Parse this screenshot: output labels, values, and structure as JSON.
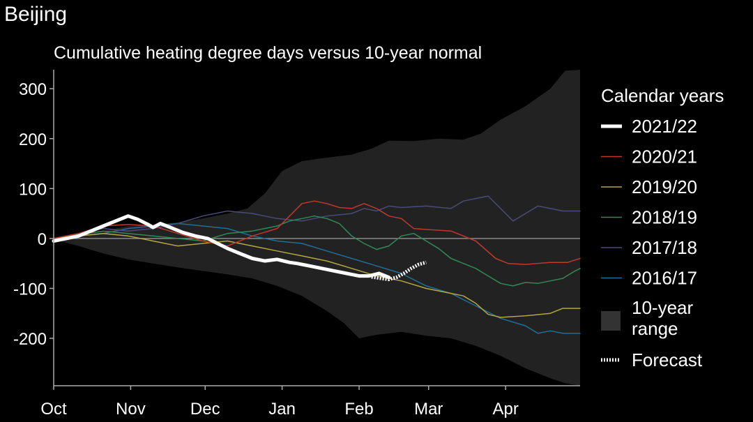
{
  "page_title": "Beijing",
  "chart_data": {
    "type": "line",
    "title": "Cumulative heating degree days versus 10-year normal",
    "xlabel": "",
    "ylabel": "",
    "x_tick_labels": [
      "Oct",
      "Nov",
      "Dec",
      "Jan",
      "Feb",
      "Mar",
      "Apr"
    ],
    "x_tick_days": [
      0,
      31,
      61,
      92,
      123,
      151,
      182
    ],
    "xlim": [
      0,
      212
    ],
    "ylim": [
      -295,
      338
    ],
    "y_ticks": [
      300,
      200,
      100,
      0,
      -100,
      -200
    ],
    "legend": {
      "title": "Calendar years",
      "position": "right",
      "range_label_line1": "10-year",
      "range_label_line2": "range",
      "forecast_label": "Forecast"
    },
    "range_band": {
      "name": "10-year range",
      "color": "#222222",
      "upper": [
        [
          0,
          2
        ],
        [
          10,
          8
        ],
        [
          20,
          15
        ],
        [
          30,
          25
        ],
        [
          40,
          28
        ],
        [
          50,
          32
        ],
        [
          60,
          40
        ],
        [
          70,
          50
        ],
        [
          78,
          60
        ],
        [
          85,
          90
        ],
        [
          92,
          135
        ],
        [
          100,
          155
        ],
        [
          110,
          162
        ],
        [
          120,
          168
        ],
        [
          128,
          180
        ],
        [
          135,
          196
        ],
        [
          145,
          195
        ],
        [
          155,
          200
        ],
        [
          165,
          198
        ],
        [
          172,
          210
        ],
        [
          180,
          238
        ],
        [
          190,
          265
        ],
        [
          200,
          300
        ],
        [
          206,
          336
        ],
        [
          212,
          338
        ]
      ],
      "lower": [
        [
          0,
          -2
        ],
        [
          10,
          -15
        ],
        [
          20,
          -30
        ],
        [
          30,
          -42
        ],
        [
          40,
          -50
        ],
        [
          50,
          -58
        ],
        [
          60,
          -65
        ],
        [
          70,
          -72
        ],
        [
          80,
          -80
        ],
        [
          90,
          -95
        ],
        [
          100,
          -115
        ],
        [
          110,
          -145
        ],
        [
          117,
          -170
        ],
        [
          123,
          -200
        ],
        [
          130,
          -193
        ],
        [
          140,
          -187
        ],
        [
          150,
          -195
        ],
        [
          160,
          -200
        ],
        [
          170,
          -215
        ],
        [
          180,
          -235
        ],
        [
          190,
          -260
        ],
        [
          200,
          -280
        ],
        [
          206,
          -290
        ],
        [
          212,
          -295
        ]
      ]
    },
    "zero_line_color": "#888888",
    "series": [
      {
        "name": "2021/22",
        "color": "#ffffff",
        "values": [
          [
            0,
            -5
          ],
          [
            5,
            0
          ],
          [
            10,
            5
          ],
          [
            15,
            15
          ],
          [
            20,
            25
          ],
          [
            25,
            35
          ],
          [
            30,
            45
          ],
          [
            34,
            38
          ],
          [
            38,
            28
          ],
          [
            40,
            22
          ],
          [
            43,
            30
          ],
          [
            47,
            22
          ],
          [
            52,
            12
          ],
          [
            57,
            5
          ],
          [
            62,
            0
          ],
          [
            66,
            -10
          ],
          [
            70,
            -20
          ],
          [
            75,
            -30
          ],
          [
            80,
            -40
          ],
          [
            85,
            -45
          ],
          [
            90,
            -42
          ],
          [
            95,
            -48
          ],
          [
            98,
            -50
          ],
          [
            103,
            -55
          ],
          [
            108,
            -60
          ],
          [
            113,
            -65
          ],
          [
            118,
            -70
          ],
          [
            123,
            -75
          ],
          [
            127,
            -75
          ],
          [
            131,
            -70
          ],
          [
            135,
            -78
          ]
        ]
      },
      {
        "name": "2020/21",
        "color": "#c0392b",
        "values": [
          [
            0,
            0
          ],
          [
            10,
            10
          ],
          [
            20,
            25
          ],
          [
            30,
            28
          ],
          [
            40,
            25
          ],
          [
            50,
            10
          ],
          [
            60,
            -5
          ],
          [
            70,
            -15
          ],
          [
            80,
            5
          ],
          [
            90,
            20
          ],
          [
            95,
            45
          ],
          [
            100,
            70
          ],
          [
            105,
            75
          ],
          [
            110,
            70
          ],
          [
            115,
            62
          ],
          [
            120,
            60
          ],
          [
            125,
            70
          ],
          [
            130,
            60
          ],
          [
            135,
            45
          ],
          [
            140,
            40
          ],
          [
            145,
            20
          ],
          [
            150,
            18
          ],
          [
            160,
            15
          ],
          [
            170,
            -5
          ],
          [
            178,
            -40
          ],
          [
            183,
            -50
          ],
          [
            190,
            -52
          ],
          [
            200,
            -48
          ],
          [
            207,
            -48
          ],
          [
            212,
            -40
          ]
        ]
      },
      {
        "name": "2019/20",
        "color": "#b5a642",
        "values": [
          [
            0,
            0
          ],
          [
            10,
            5
          ],
          [
            20,
            10
          ],
          [
            30,
            5
          ],
          [
            40,
            -5
          ],
          [
            50,
            -15
          ],
          [
            60,
            -10
          ],
          [
            70,
            -5
          ],
          [
            80,
            -15
          ],
          [
            90,
            -25
          ],
          [
            100,
            -35
          ],
          [
            110,
            -45
          ],
          [
            120,
            -60
          ],
          [
            130,
            -75
          ],
          [
            140,
            -85
          ],
          [
            150,
            -100
          ],
          [
            160,
            -110
          ],
          [
            165,
            -115
          ],
          [
            170,
            -130
          ],
          [
            175,
            -152
          ],
          [
            180,
            -158
          ],
          [
            190,
            -155
          ],
          [
            200,
            -150
          ],
          [
            205,
            -140
          ],
          [
            212,
            -140
          ]
        ]
      },
      {
        "name": "2018/19",
        "color": "#2e8b57",
        "values": [
          [
            0,
            0
          ],
          [
            10,
            8
          ],
          [
            20,
            15
          ],
          [
            30,
            10
          ],
          [
            40,
            5
          ],
          [
            50,
            0
          ],
          [
            60,
            -5
          ],
          [
            70,
            10
          ],
          [
            80,
            15
          ],
          [
            90,
            25
          ],
          [
            95,
            35
          ],
          [
            100,
            40
          ],
          [
            105,
            45
          ],
          [
            110,
            40
          ],
          [
            115,
            30
          ],
          [
            120,
            5
          ],
          [
            125,
            -10
          ],
          [
            130,
            -22
          ],
          [
            135,
            -15
          ],
          [
            140,
            5
          ],
          [
            145,
            10
          ],
          [
            150,
            -5
          ],
          [
            155,
            -20
          ],
          [
            160,
            -40
          ],
          [
            165,
            -50
          ],
          [
            170,
            -60
          ],
          [
            175,
            -75
          ],
          [
            180,
            -90
          ],
          [
            185,
            -95
          ],
          [
            190,
            -88
          ],
          [
            195,
            -90
          ],
          [
            200,
            -85
          ],
          [
            205,
            -80
          ],
          [
            210,
            -65
          ],
          [
            212,
            -60
          ]
        ]
      },
      {
        "name": "2017/18",
        "color": "#4b4a7a",
        "values": [
          [
            0,
            0
          ],
          [
            10,
            10
          ],
          [
            20,
            20
          ],
          [
            30,
            15
          ],
          [
            40,
            20
          ],
          [
            50,
            30
          ],
          [
            60,
            45
          ],
          [
            70,
            55
          ],
          [
            80,
            50
          ],
          [
            90,
            40
          ],
          [
            100,
            35
          ],
          [
            110,
            45
          ],
          [
            120,
            50
          ],
          [
            125,
            60
          ],
          [
            130,
            55
          ],
          [
            135,
            65
          ],
          [
            140,
            62
          ],
          [
            150,
            65
          ],
          [
            160,
            60
          ],
          [
            165,
            75
          ],
          [
            170,
            80
          ],
          [
            175,
            85
          ],
          [
            180,
            60
          ],
          [
            185,
            35
          ],
          [
            190,
            50
          ],
          [
            195,
            65
          ],
          [
            200,
            60
          ],
          [
            205,
            55
          ],
          [
            212,
            55
          ]
        ]
      },
      {
        "name": "2016/17",
        "color": "#1f6f99",
        "values": [
          [
            0,
            0
          ],
          [
            10,
            5
          ],
          [
            20,
            10
          ],
          [
            30,
            20
          ],
          [
            40,
            25
          ],
          [
            50,
            30
          ],
          [
            60,
            25
          ],
          [
            70,
            20
          ],
          [
            80,
            5
          ],
          [
            90,
            -5
          ],
          [
            100,
            -10
          ],
          [
            110,
            -25
          ],
          [
            120,
            -40
          ],
          [
            130,
            -55
          ],
          [
            140,
            -70
          ],
          [
            150,
            -95
          ],
          [
            160,
            -110
          ],
          [
            170,
            -135
          ],
          [
            180,
            -160
          ],
          [
            190,
            -175
          ],
          [
            195,
            -190
          ],
          [
            200,
            -185
          ],
          [
            205,
            -190
          ],
          [
            212,
            -190
          ]
        ]
      }
    ],
    "forecast": {
      "name": "Forecast",
      "color": "#ffffff",
      "values": [
        [
          128,
          -77
        ],
        [
          132,
          -80
        ],
        [
          135,
          -82
        ],
        [
          138,
          -78
        ],
        [
          141,
          -70
        ],
        [
          144,
          -60
        ],
        [
          147,
          -52
        ],
        [
          150,
          -48
        ]
      ]
    }
  }
}
